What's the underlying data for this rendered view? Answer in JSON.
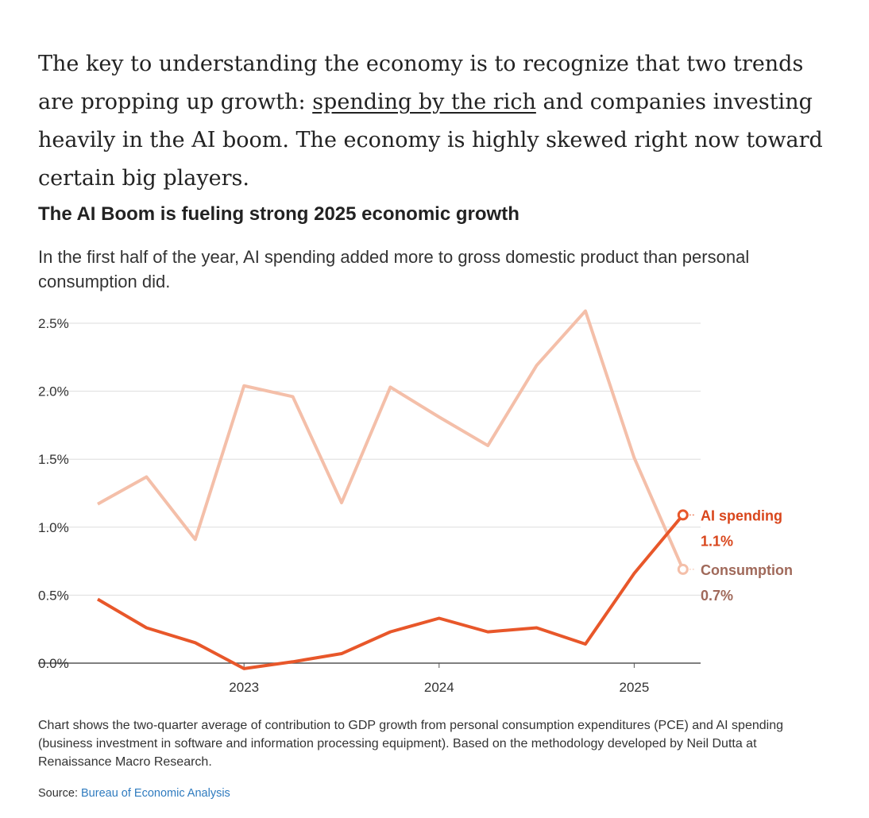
{
  "article": {
    "lead_before": "The key to understanding the economy is to recognize that two trends are propping up growth: ",
    "lead_link": "spending by the rich",
    "lead_after": " and companies investing heavily in the AI boom. The economy is highly skewed right now toward certain big players."
  },
  "chart_data": {
    "type": "line",
    "title": "The AI Boom is fueling strong 2025 economic growth",
    "subtitle": "In the first half of the year, AI spending added more to gross domestic product than personal consumption did.",
    "x": [
      "2022Q2",
      "2022Q3",
      "2022Q4",
      "2023Q1",
      "2023Q2",
      "2023Q3",
      "2023Q4",
      "2024Q1",
      "2024Q2",
      "2024Q3",
      "2024Q4",
      "2025Q1",
      "2025Q2"
    ],
    "x_tick_labels": [
      "2023",
      "2024",
      "2025"
    ],
    "y_tick_labels": [
      "0.0%",
      "0.5%",
      "1.0%",
      "1.5%",
      "2.0%",
      "2.5%"
    ],
    "ylim": [
      0,
      2.5
    ],
    "grid": true,
    "series": [
      {
        "name": "Consumption",
        "color": "#f4bfa9",
        "label_color": "#a0695a",
        "end_label": "0.7%",
        "values": [
          1.17,
          1.37,
          0.91,
          2.04,
          1.96,
          1.18,
          2.03,
          1.81,
          1.6,
          2.19,
          2.59,
          1.51,
          0.69
        ]
      },
      {
        "name": "AI spending",
        "color": "#e8572a",
        "label_color": "#d9461c",
        "end_label": "1.1%",
        "values": [
          0.47,
          0.26,
          0.15,
          -0.04,
          0.01,
          0.07,
          0.23,
          0.33,
          0.23,
          0.26,
          0.14,
          0.66,
          1.09
        ]
      }
    ]
  },
  "footer": {
    "note": "Chart shows the two-quarter average of contribution to GDP growth from personal consumption expenditures (PCE) and AI spending (business investment in software and information processing equipment). Based on the methodology developed by Neil Dutta at Renaissance Macro Research.",
    "source_label": "Source: ",
    "source_link": "Bureau of Economic Analysis"
  }
}
